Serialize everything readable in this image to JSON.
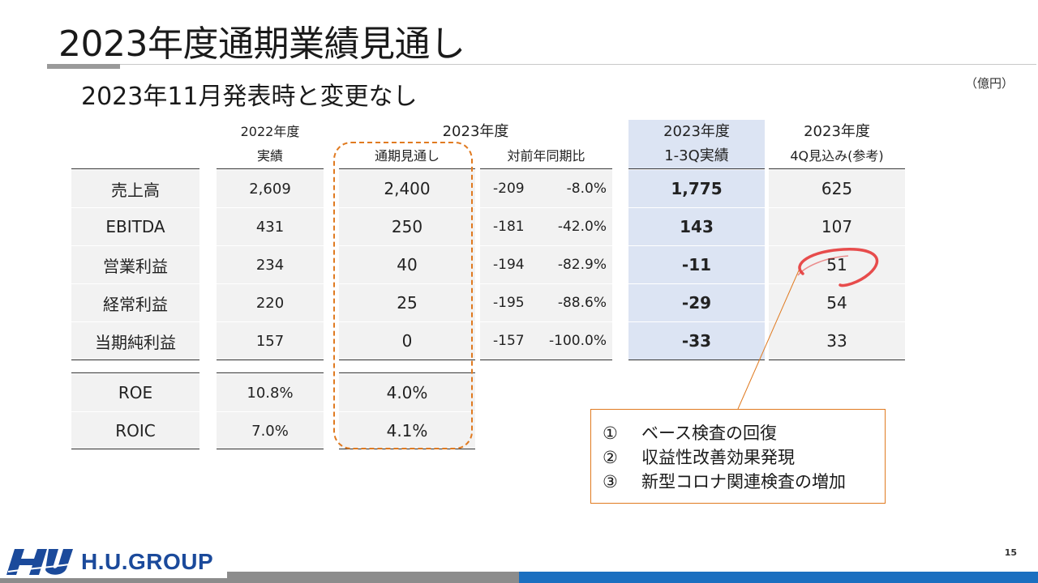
{
  "title": "2023年度通期業績見通し",
  "subtitle": "2023年11月発表時と変更なし",
  "unit": "（億円）",
  "headers": {
    "fy2022_line1": "2022年度",
    "fy2022_line2": "実績",
    "fy2023": "2023年度",
    "forecast": "通期見通し",
    "yoy": "対前年同期比",
    "q3_line1": "2023年度",
    "q3_line2": "1-3Q実績",
    "q4_line1": "2023年度",
    "q4_line2": "4Q見込み(参考)"
  },
  "rows": [
    {
      "label": "売上高",
      "fy2022": "2,609",
      "forecast": "2,400",
      "yoy_amt": "-209",
      "yoy_pct": "-8.0%",
      "q3": "1,775",
      "q4": "625"
    },
    {
      "label": "EBITDA",
      "fy2022": "431",
      "forecast": "250",
      "yoy_amt": "-181",
      "yoy_pct": "-42.0%",
      "q3": "143",
      "q4": "107"
    },
    {
      "label": "営業利益",
      "fy2022": "234",
      "forecast": "40",
      "yoy_amt": "-194",
      "yoy_pct": "-82.9%",
      "q3": "-11",
      "q4": "51"
    },
    {
      "label": "経常利益",
      "fy2022": "220",
      "forecast": "25",
      "yoy_amt": "-195",
      "yoy_pct": "-88.6%",
      "q3": "-29",
      "q4": "54"
    },
    {
      "label": "当期純利益",
      "fy2022": "157",
      "forecast": "0",
      "yoy_amt": "-157",
      "yoy_pct": "-100.0%",
      "q3": "-33",
      "q4": "33"
    }
  ],
  "ratio_rows": [
    {
      "label": "ROE",
      "fy2022": "10.8%",
      "forecast": "4.0%"
    },
    {
      "label": "ROIC",
      "fy2022": "7.0%",
      "forecast": "4.1%"
    }
  ],
  "notes": [
    {
      "num": "①",
      "text": "ベース検査の回復"
    },
    {
      "num": "②",
      "text": "収益性改善効果発現"
    },
    {
      "num": "③",
      "text": "新型コロナ関連検査の増加"
    }
  ],
  "footer": {
    "logo_text": "H.U.GROUP",
    "page_number": "15"
  },
  "colors": {
    "accent_orange": "#e07a20",
    "highlight_blue": "#dce4f3",
    "brand_blue": "#1b4a9b",
    "circle_red": "#e53a3a"
  }
}
